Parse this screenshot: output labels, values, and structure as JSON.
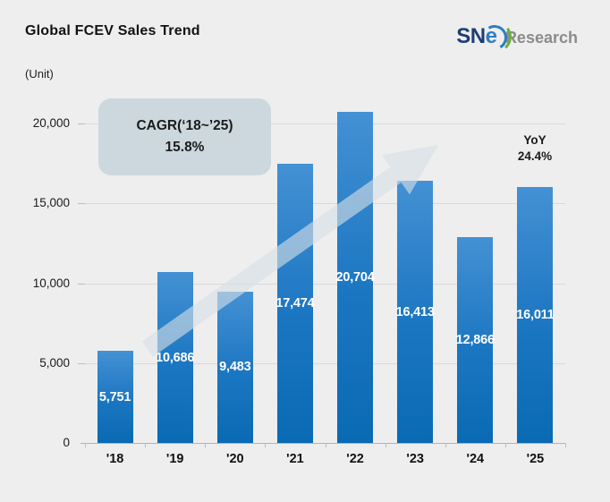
{
  "header": {
    "title": "Global FCEV Sales Trend",
    "unit_label": "(Unit)",
    "logo": {
      "sn": "SN",
      "e": "e",
      "research": "Research"
    }
  },
  "annotations": {
    "cagr_line1": "CAGR(‘18~’25)",
    "cagr_line2": "15.8%",
    "yoy_line1": "YoY",
    "yoy_line2": "24.4%"
  },
  "chart_data": {
    "type": "bar",
    "title": "Global FCEV Sales Trend",
    "ylabel": "(Unit)",
    "xlabel": "",
    "categories": [
      "'18",
      "'19",
      "'20",
      "'21",
      "'22",
      "'23",
      "'24",
      "'25"
    ],
    "values": [
      5751,
      10686,
      9483,
      17474,
      20704,
      16413,
      12866,
      16011
    ],
    "value_labels": [
      "5,751",
      "10,686",
      "9,483",
      "17,474",
      "20,704",
      "16,413",
      "12,866",
      "16,011"
    ],
    "yticks": [
      0,
      5000,
      10000,
      15000,
      20000
    ],
    "ytick_labels": [
      "0",
      "5,000",
      "10,000",
      "15,000",
      "20,000"
    ],
    "ylim": [
      0,
      21500
    ],
    "grid": true,
    "legend": "none",
    "annotations": [
      "CAGR(‘18~’25) 15.8%",
      "YoY 24.4% (2025)"
    ]
  },
  "colors": {
    "background": "#eeeeee",
    "bar_top": "#4491d4",
    "bar_bottom": "#0a6ab4",
    "grid": "#dadada",
    "axis": "#b3b3b3",
    "cagr_box_bg": "#ccd8de",
    "trend_arrow": "#d6dee5",
    "value_text": "#ffffff",
    "logo_navy": "#1c3e76",
    "logo_blue": "#2e7ec0",
    "logo_green": "#67b03c",
    "logo_gray": "#8b8b8b"
  }
}
